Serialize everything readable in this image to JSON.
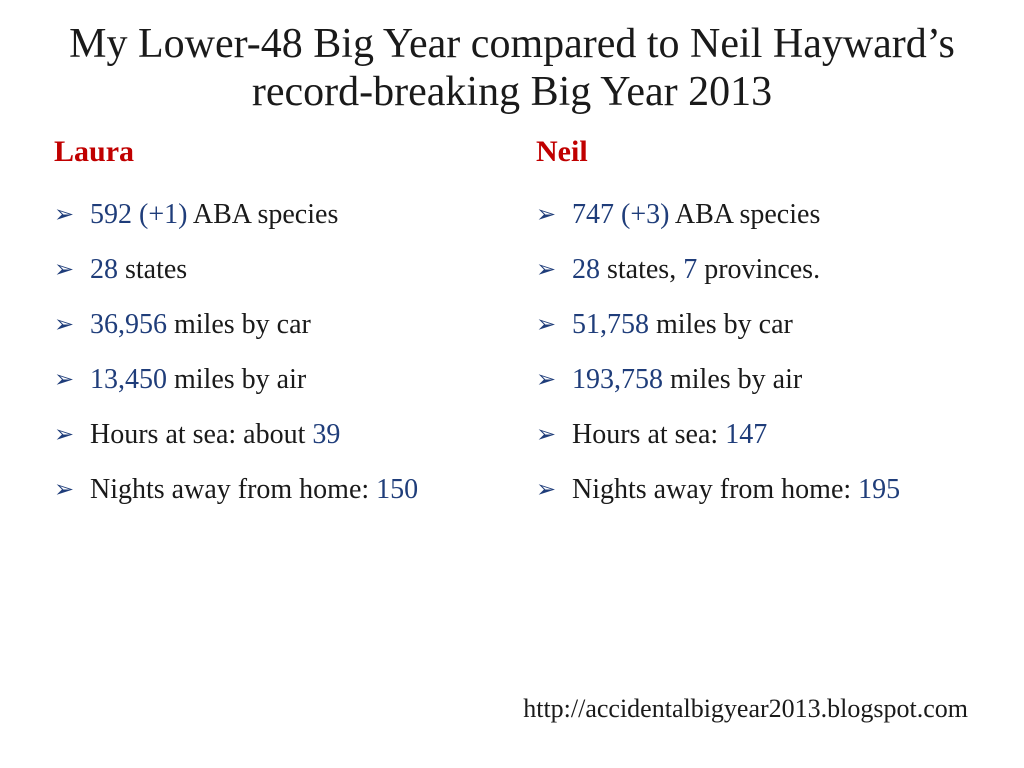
{
  "title": "My Lower-48 Big Year compared to Neil Hayward’s record-breaking Big Year 2013",
  "colors": {
    "name_color": "#c00000",
    "number_color": "#1f3d7a",
    "bullet_color": "#1f3d7a",
    "text_color": "#1a1a1a",
    "background": "#ffffff"
  },
  "typography": {
    "title_fontsize": 42,
    "name_fontsize": 30,
    "item_fontsize": 28,
    "footer_fontsize": 26,
    "font_family": "Palatino"
  },
  "bullet_glyph": "➢",
  "columns": [
    {
      "name": "Laura",
      "items": [
        {
          "parts": [
            {
              "t": "592 (+1)",
              "num": true
            },
            {
              "t": " ABA species",
              "num": false
            }
          ]
        },
        {
          "parts": [
            {
              "t": "28",
              "num": true
            },
            {
              "t": " states",
              "num": false
            }
          ]
        },
        {
          "parts": [
            {
              "t": "36,956",
              "num": true
            },
            {
              "t": " miles by car",
              "num": false
            }
          ]
        },
        {
          "parts": [
            {
              "t": "13,450",
              "num": true
            },
            {
              "t": " miles by air",
              "num": false
            }
          ]
        },
        {
          "parts": [
            {
              "t": "Hours at sea: about ",
              "num": false
            },
            {
              "t": "39",
              "num": true
            }
          ]
        },
        {
          "parts": [
            {
              "t": "Nights away from home: ",
              "num": false
            },
            {
              "t": "150",
              "num": true
            }
          ]
        }
      ]
    },
    {
      "name": "Neil",
      "items": [
        {
          "parts": [
            {
              "t": "747 (+3)",
              "num": true
            },
            {
              "t": " ABA species",
              "num": false
            }
          ]
        },
        {
          "parts": [
            {
              "t": "28",
              "num": true
            },
            {
              "t": " states, ",
              "num": false
            },
            {
              "t": "7",
              "num": true
            },
            {
              "t": " provinces.",
              "num": false
            }
          ]
        },
        {
          "parts": [
            {
              "t": "51,758",
              "num": true
            },
            {
              "t": " miles by car",
              "num": false
            }
          ]
        },
        {
          "parts": [
            {
              "t": "193,758",
              "num": true
            },
            {
              "t": " miles by air",
              "num": false
            }
          ]
        },
        {
          "parts": [
            {
              "t": "Hours at sea: ",
              "num": false
            },
            {
              "t": "147",
              "num": true
            }
          ]
        },
        {
          "parts": [
            {
              "t": "Nights away from home: ",
              "num": false
            },
            {
              "t": "195",
              "num": true
            }
          ]
        }
      ]
    }
  ],
  "footer_url": "http://accidentalbigyear2013.blogspot.com"
}
